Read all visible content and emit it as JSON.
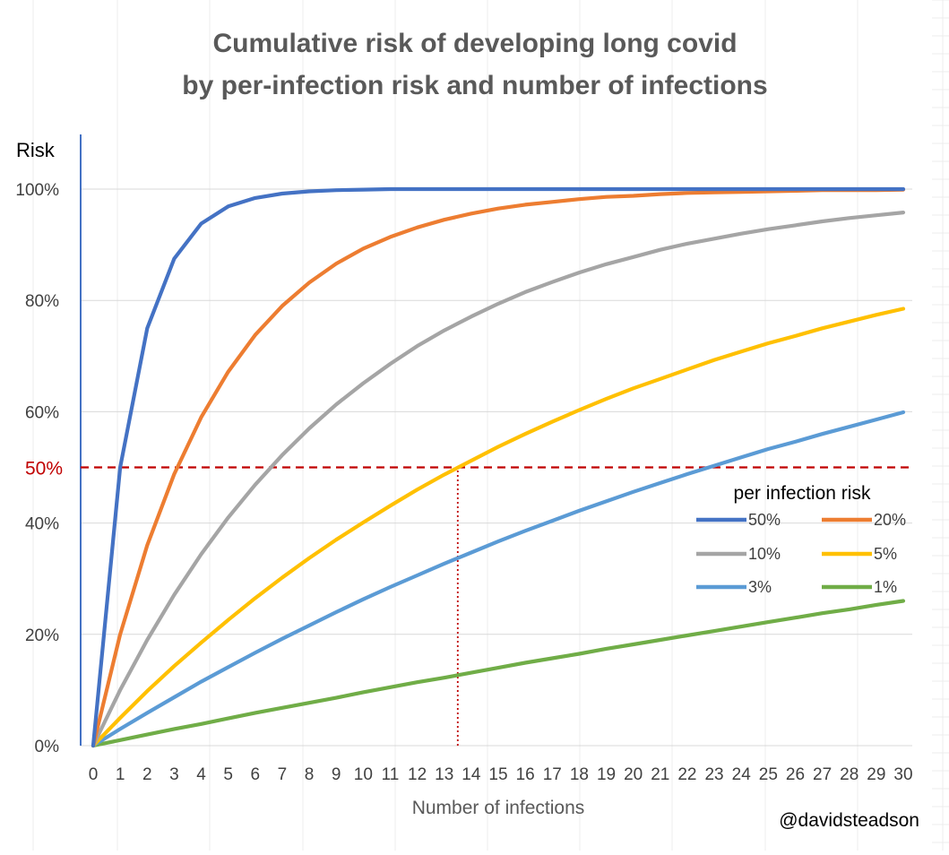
{
  "chart_data": {
    "type": "line",
    "title": "Cumulative risk of developing long covid",
    "subtitle": "by per-infection risk and number of infections",
    "xlabel": "Number of infections",
    "ylabel": "Risk",
    "x": [
      0,
      1,
      2,
      3,
      4,
      5,
      6,
      7,
      8,
      9,
      10,
      11,
      12,
      13,
      14,
      15,
      16,
      17,
      18,
      19,
      20,
      21,
      22,
      23,
      24,
      25,
      26,
      27,
      28,
      29,
      30
    ],
    "xlim": [
      0,
      30
    ],
    "ylim": [
      0,
      100
    ],
    "y_ticks": [
      "0%",
      "20%",
      "40%",
      "60%",
      "80%",
      "100%"
    ],
    "y_tick_values": [
      0,
      20,
      40,
      60,
      80,
      100
    ],
    "grid": "horizontal",
    "legend_title": "per infection risk",
    "legend_position": "right",
    "series": [
      {
        "name": "50%",
        "color": "#4472c4",
        "values": [
          0,
          50,
          75,
          87.5,
          93.8,
          96.9,
          98.4,
          99.2,
          99.6,
          99.8,
          99.9,
          100,
          100,
          100,
          100,
          100,
          100,
          100,
          100,
          100,
          100,
          100,
          100,
          100,
          100,
          100,
          100,
          100,
          100,
          100,
          100
        ]
      },
      {
        "name": "20%",
        "color": "#ed7d31",
        "values": [
          0,
          20,
          36,
          48.8,
          59,
          67.2,
          73.8,
          79,
          83.2,
          86.6,
          89.3,
          91.4,
          93.1,
          94.5,
          95.6,
          96.5,
          97.2,
          97.7,
          98.2,
          98.6,
          98.8,
          99.1,
          99.3,
          99.4,
          99.5,
          99.6,
          99.7,
          99.8,
          99.8,
          99.8,
          99.9
        ]
      },
      {
        "name": "10%",
        "color": "#a5a5a5",
        "values": [
          0,
          10,
          19,
          27.1,
          34.4,
          41,
          46.9,
          52.2,
          57,
          61.3,
          65.1,
          68.6,
          71.8,
          74.6,
          77.1,
          79.4,
          81.5,
          83.3,
          85,
          86.5,
          87.8,
          89.1,
          90.2,
          91.1,
          92,
          92.8,
          93.5,
          94.2,
          94.8,
          95.3,
          95.8
        ]
      },
      {
        "name": "5%",
        "color": "#ffc000",
        "values": [
          0,
          5,
          9.8,
          14.3,
          18.5,
          22.6,
          26.5,
          30.2,
          33.7,
          37,
          40.1,
          43.1,
          46,
          48.7,
          51.2,
          53.7,
          56,
          58.2,
          60.3,
          62.3,
          64.2,
          65.9,
          67.6,
          69.3,
          70.8,
          72.3,
          73.6,
          75,
          76.2,
          77.4,
          78.5
        ]
      },
      {
        "name": "3%",
        "color": "#5b9bd5",
        "values": [
          0,
          3,
          5.9,
          8.7,
          11.5,
          14.1,
          16.7,
          19.2,
          21.6,
          24,
          26.3,
          28.5,
          30.6,
          32.7,
          34.7,
          36.7,
          38.6,
          40.4,
          42.2,
          43.9,
          45.6,
          47.2,
          48.8,
          50.3,
          51.8,
          53.3,
          54.6,
          56,
          57.3,
          58.6,
          59.9
        ]
      },
      {
        "name": "1%",
        "color": "#70ad47",
        "values": [
          0,
          1,
          2,
          3,
          3.9,
          4.9,
          5.9,
          6.8,
          7.7,
          8.6,
          9.6,
          10.5,
          11.4,
          12.2,
          13.1,
          14,
          14.9,
          15.7,
          16.5,
          17.4,
          18.2,
          19,
          19.8,
          20.6,
          21.4,
          22.2,
          23,
          23.8,
          24.5,
          25.3,
          26
        ]
      }
    ],
    "reference_lines": [
      {
        "type": "horizontal",
        "y": 50,
        "label": "50%",
        "color": "#c00000",
        "style": "dashed"
      },
      {
        "type": "vertical",
        "x": 13.5,
        "from_y": 0,
        "to_y": 50,
        "color": "#c00000",
        "style": "dotted"
      }
    ]
  },
  "credit": "@davidsteadson"
}
